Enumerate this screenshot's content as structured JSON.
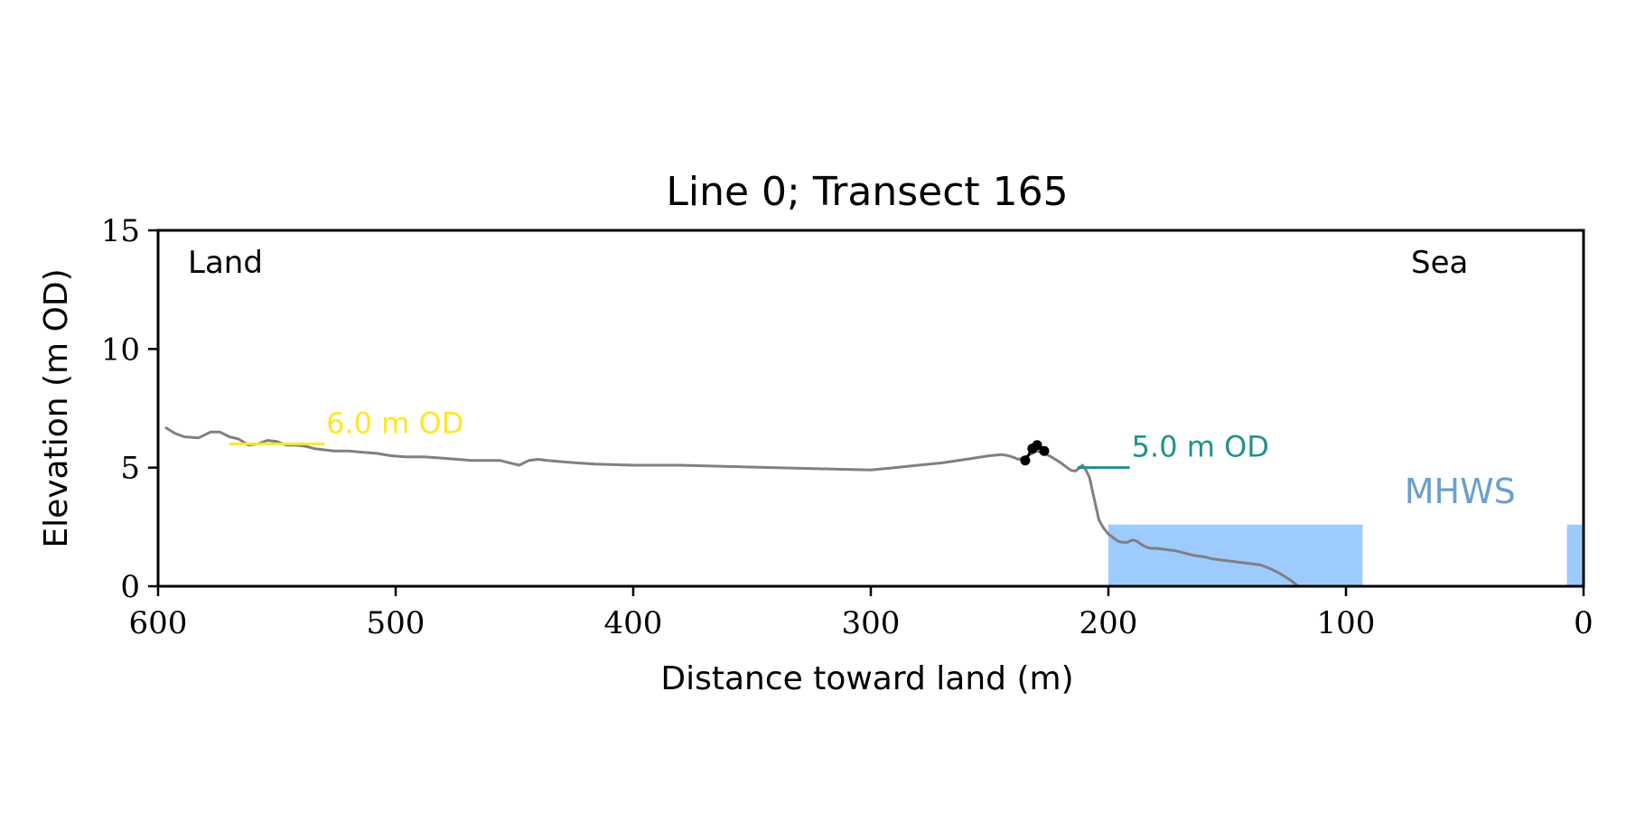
{
  "chart_data": {
    "type": "line",
    "title": "Line 0; Transect 165",
    "xlabel": "Distance toward land (m)",
    "ylabel": "Elevation (m OD)",
    "xlim": [
      600,
      0
    ],
    "ylim": [
      0,
      15
    ],
    "x_reversed": true,
    "grid": false,
    "x_ticks": [
      600,
      500,
      400,
      300,
      200,
      100,
      0
    ],
    "y_ticks": [
      0,
      5,
      10,
      15
    ],
    "x_tick_labels": [
      "600",
      "500",
      "400",
      "300",
      "200",
      "100",
      "0"
    ],
    "y_tick_labels": [
      "0",
      "5",
      "10",
      "15"
    ],
    "corner_labels": {
      "left": "Land",
      "right": "Sea"
    },
    "colors": {
      "profile": "#808080",
      "water": "#9ecbff",
      "mhws_label": "#6a9fcf",
      "contour_6": "#fde725",
      "contour_5": "#21918c",
      "markers": "#000000"
    },
    "series": [
      {
        "x": [
          597,
          593,
          589,
          583,
          578,
          574,
          570,
          566,
          562,
          558,
          554,
          550,
          546,
          542,
          538,
          534,
          530,
          526,
          520,
          514,
          508,
          502,
          496,
          492,
          488,
          480,
          474,
          468,
          462,
          456,
          452,
          448,
          444,
          440,
          436,
          430,
          424,
          416,
          400,
          380,
          360,
          340,
          320,
          300,
          290,
          280,
          270,
          260,
          250,
          245,
          242,
          239,
          238,
          236,
          233,
          230,
          227,
          224,
          220,
          216,
          214,
          212,
          211,
          210,
          208,
          206,
          204,
          202,
          200,
          198,
          196,
          194,
          192,
          190,
          188,
          186,
          184,
          182,
          180,
          176,
          172,
          168,
          164,
          160,
          156,
          152,
          148,
          144,
          140,
          136,
          132,
          128,
          124,
          120
        ],
        "y": [
          6.7,
          6.45,
          6.3,
          6.25,
          6.5,
          6.5,
          6.3,
          6.2,
          5.95,
          6.0,
          6.15,
          6.1,
          5.95,
          5.95,
          5.9,
          5.8,
          5.75,
          5.7,
          5.7,
          5.65,
          5.6,
          5.5,
          5.45,
          5.45,
          5.45,
          5.4,
          5.35,
          5.3,
          5.3,
          5.3,
          5.2,
          5.1,
          5.3,
          5.35,
          5.3,
          5.25,
          5.2,
          5.15,
          5.1,
          5.1,
          5.05,
          5.0,
          4.95,
          4.9,
          5.0,
          5.1,
          5.2,
          5.35,
          5.5,
          5.55,
          5.5,
          5.4,
          5.35,
          5.4,
          5.55,
          5.7,
          5.6,
          5.45,
          5.2,
          4.9,
          4.85,
          5.0,
          5.1,
          5.0,
          4.6,
          3.7,
          2.8,
          2.45,
          2.2,
          2.05,
          1.9,
          1.85,
          1.85,
          1.95,
          1.9,
          1.75,
          1.65,
          1.6,
          1.6,
          1.55,
          1.5,
          1.4,
          1.3,
          1.25,
          1.15,
          1.1,
          1.05,
          1.0,
          0.95,
          0.9,
          0.75,
          0.55,
          0.3,
          0.0
        ]
      }
    ],
    "markers": [
      {
        "x": 235,
        "y": 5.3
      },
      {
        "x": 232,
        "y": 5.8
      },
      {
        "x": 230,
        "y": 5.95
      },
      {
        "x": 227,
        "y": 5.7
      }
    ],
    "water_regions": [
      {
        "x_from": 200,
        "x_to": 93,
        "y": 2.6
      },
      {
        "x_from": 7,
        "x_to": 0,
        "y": 2.6
      }
    ],
    "annotations": [
      {
        "text": "6.0 m OD",
        "x_from": 570,
        "x_to": 530,
        "y": 6.0,
        "color": "#fde725"
      },
      {
        "text": "5.0 m OD",
        "x_from": 213,
        "x_to": 191,
        "y": 5.0,
        "color": "#21918c"
      },
      {
        "text": "MHWS",
        "x": 52,
        "y": 3.5,
        "color": "#6a9fcf"
      }
    ]
  }
}
